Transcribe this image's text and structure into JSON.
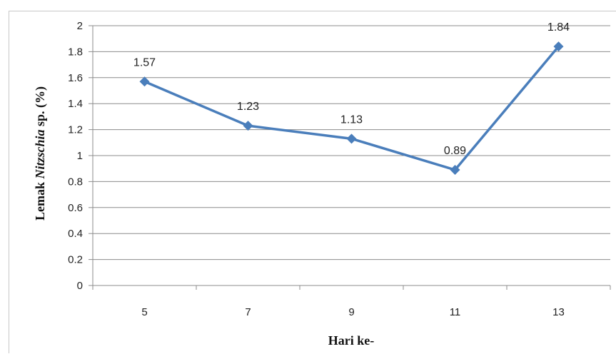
{
  "chart_data": {
    "type": "line",
    "title": "",
    "xlabel": "Hari ke-",
    "ylabel_parts": [
      "Lemak ",
      "Nitzschia",
      " sp. (%)"
    ],
    "categories": [
      "5",
      "7",
      "9",
      "11",
      "13"
    ],
    "series": [
      {
        "values": [
          1.57,
          1.23,
          1.13,
          0.89,
          1.84
        ],
        "labels": [
          "1.57",
          "1.23",
          "1.13",
          "0.89",
          "1.84"
        ],
        "color": "#4a7ebb"
      }
    ],
    "ylim": [
      0,
      2
    ],
    "yticks": [
      "0",
      "0.2",
      "0.4",
      "0.6",
      "0.8",
      "1",
      "1.2",
      "1.4",
      "1.6",
      "1.8",
      "2"
    ],
    "grid": true,
    "legend": "none"
  }
}
